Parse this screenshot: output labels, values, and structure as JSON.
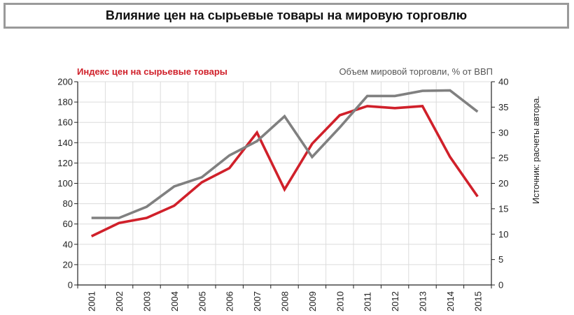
{
  "title": "Влияние цен на сырьевые товары на мировую торговлю",
  "chart_data": {
    "type": "line",
    "title": "Влияние цен на сырьевые товары на мировую торговлю",
    "categories": [
      "2001",
      "2002",
      "2003",
      "2004",
      "2005",
      "2006",
      "2007",
      "2008",
      "2009",
      "2010",
      "2011",
      "2012",
      "2013",
      "2014",
      "2015"
    ],
    "series": [
      {
        "name": "Индекс цен на сырьевые товары",
        "axis": "left",
        "color": "#d0202a",
        "values": [
          48,
          61,
          66,
          78,
          101,
          115,
          150,
          94,
          139,
          167,
          176,
          174,
          176,
          126,
          87
        ]
      },
      {
        "name": "Объем мировой торговли, % от ВВП",
        "axis": "right",
        "color": "#808080",
        "values": [
          13.2,
          13.2,
          15.4,
          19.4,
          21.2,
          25.5,
          28.3,
          33.2,
          25.2,
          31.0,
          37.2,
          37.2,
          38.2,
          38.3,
          34.1
        ]
      }
    ],
    "left_axis": {
      "min": 0,
      "max": 200,
      "ticks": [
        0,
        20,
        40,
        60,
        80,
        100,
        120,
        140,
        160,
        180,
        200
      ]
    },
    "right_axis": {
      "min": 0,
      "max": 40,
      "ticks": [
        0,
        5,
        10,
        15,
        20,
        25,
        30,
        35,
        40
      ]
    },
    "legend_left": "Индекс цен на сырьевые товары",
    "legend_right": "Объем мировой торговли, % от ВВП",
    "source": "Источник: расчеты автора.",
    "grid": true
  }
}
